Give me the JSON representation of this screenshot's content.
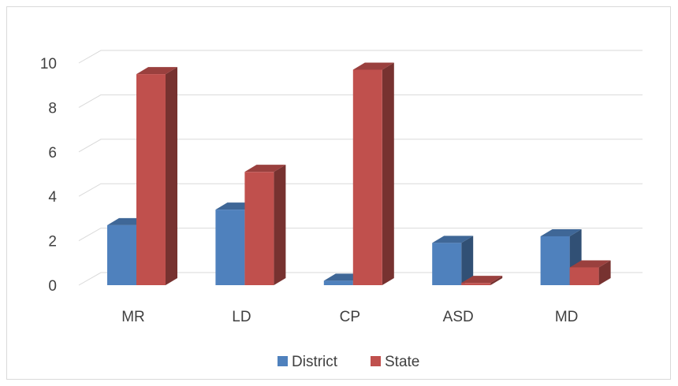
{
  "chart_data": {
    "type": "bar",
    "style": "3d-clustered-column",
    "categories": [
      "MR",
      "LD",
      "CP",
      "ASD",
      "MD"
    ],
    "series": [
      {
        "name": "District",
        "values": [
          2.7,
          3.4,
          0.2,
          1.9,
          2.2
        ],
        "color": "#4f81bd"
      },
      {
        "name": "State",
        "values": [
          9.5,
          5.1,
          9.7,
          0.1,
          0.8
        ],
        "color": "#c0504d"
      }
    ],
    "yticks": [
      0,
      2,
      4,
      6,
      8,
      10
    ],
    "ylim": [
      0,
      10
    ],
    "grid": true,
    "legend": "bottom",
    "title": "",
    "xlabel": "",
    "ylabel": ""
  }
}
